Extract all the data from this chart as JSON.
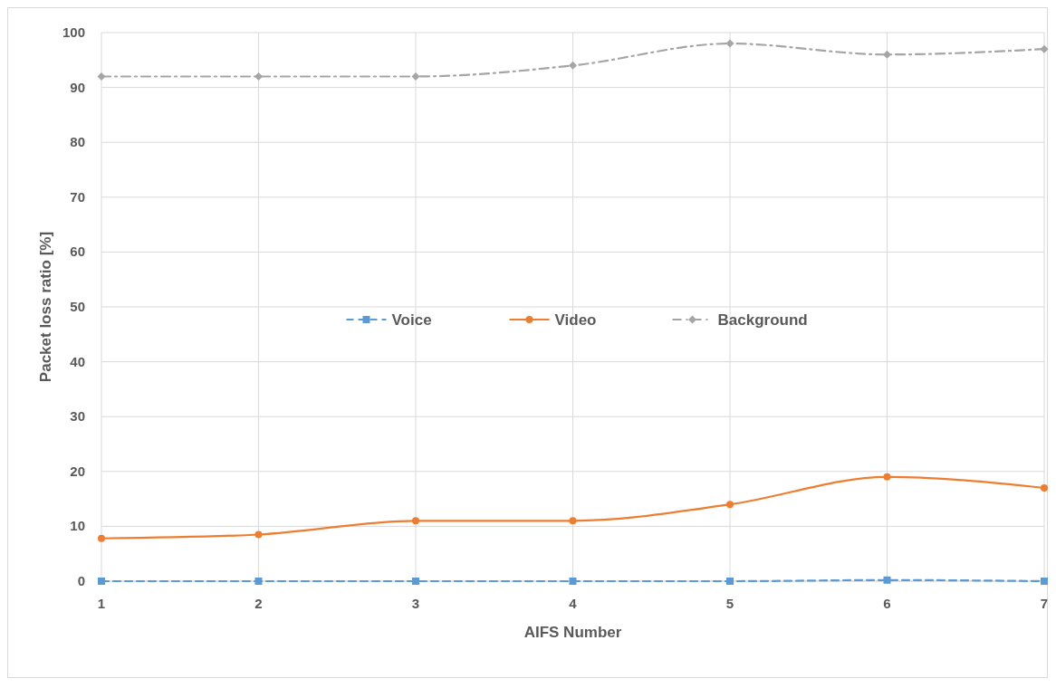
{
  "chart_data": {
    "type": "line",
    "xlabel": "AIFS Number",
    "ylabel": "Packet loss ratio [%]",
    "x": [
      1,
      2,
      3,
      4,
      5,
      6,
      7
    ],
    "xlim": [
      1,
      7
    ],
    "xticks": [
      1,
      2,
      3,
      4,
      5,
      6,
      7
    ],
    "ylim": [
      0,
      100
    ],
    "yticks": [
      0,
      10,
      20,
      30,
      40,
      50,
      60,
      70,
      80,
      90,
      100
    ],
    "grid": true,
    "legend": "center",
    "series": [
      {
        "name": "Voice",
        "color": "#5b9bd5",
        "marker": "square",
        "line_style": "dashed",
        "values": [
          0,
          0,
          0,
          0,
          0,
          0.2,
          0
        ]
      },
      {
        "name": "Video",
        "color": "#ed7d31",
        "marker": "circle",
        "line_style": "solid",
        "values": [
          7.8,
          8.5,
          11,
          11,
          14,
          19,
          17
        ]
      },
      {
        "name": "Background",
        "color": "#a5a5a5",
        "marker": "diamond",
        "line_style": "dashdot",
        "values": [
          92,
          92,
          92,
          94,
          98,
          96,
          97
        ]
      }
    ]
  }
}
